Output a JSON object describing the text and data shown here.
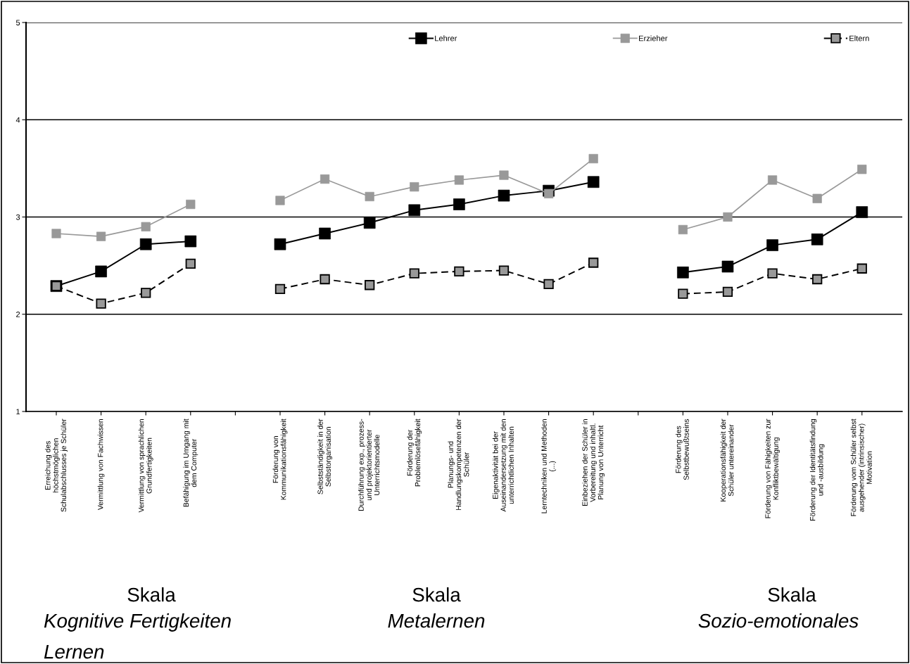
{
  "chart_data": {
    "type": "line",
    "categories": [
      "Erreichung des\nhöchstmöglichen\nSchulabschlusses je Schüler",
      "Vermittlung von Fachwissen",
      "Vermittlung von sprachlichen\nGrundfertigkeiten",
      "Befähigung im Umgang mit\ndem Computer",
      null,
      "Förderung von\nKommunikationsfähigkeit",
      "Selbstständigkeit in der\nSelbstorganisation",
      "Durchführung exp., prozess-\nund projektorientierter\nUnterrichtsmodelle",
      "Förderung der\nProblemlösefähigkeit",
      "Planungs- und\nHandlungskompetenzen der\nSchüler",
      "Eigenaktivität bei der\nAuseinandersetzung mit den\nunterrichtlichen Inhalten",
      "Lerntechniken und Methoden\n(...)",
      "Einbeziehen der Schüler in\nVorbereitung und inhaltl.\nPlanung von Unterricht",
      null,
      "Förderung des\nSelbstbewußtseins",
      "Kooperationsfähigkeit der\nSchüler untereinander",
      "Förderung von Fähigkeiten zur\nKonfliktbewältigung",
      "Förderung der Identitätsfindung\nund -ausbildung",
      "Förderung vom Schüler selbst\nausgehender (intrinsischer)\nMotivation"
    ],
    "series": [
      {
        "name": "Lehrer",
        "color": "#000000",
        "line_style": "solid",
        "values": [
          2.29,
          2.44,
          2.72,
          2.75,
          null,
          2.72,
          2.83,
          2.94,
          3.07,
          3.13,
          3.22,
          3.27,
          3.36,
          null,
          2.43,
          2.49,
          2.71,
          2.77,
          3.05
        ]
      },
      {
        "name": "Erzieher",
        "color": "#999999",
        "line_style": "solid",
        "values": [
          2.83,
          2.8,
          2.9,
          3.13,
          null,
          3.17,
          3.39,
          3.21,
          3.31,
          3.38,
          3.43,
          3.24,
          3.6,
          null,
          2.87,
          3.0,
          3.38,
          3.19,
          3.49
        ]
      },
      {
        "name": "Eltern",
        "color": "#999999",
        "line_style": "dashed",
        "values": [
          2.29,
          2.11,
          2.22,
          2.52,
          null,
          2.26,
          2.36,
          2.3,
          2.42,
          2.44,
          2.45,
          2.31,
          2.53,
          null,
          2.21,
          2.23,
          2.42,
          2.36,
          2.47
        ]
      }
    ],
    "ylim": [
      1,
      5
    ],
    "yticks": [
      1,
      2,
      3,
      4,
      5
    ],
    "grid": "y",
    "legend": "top",
    "marker": "square",
    "annotations": [
      "Skala",
      "Kognitive Fertigkeiten\nLernen",
      "Skala",
      "Metalernen",
      "Skala",
      "Sozio-emotionales"
    ]
  }
}
